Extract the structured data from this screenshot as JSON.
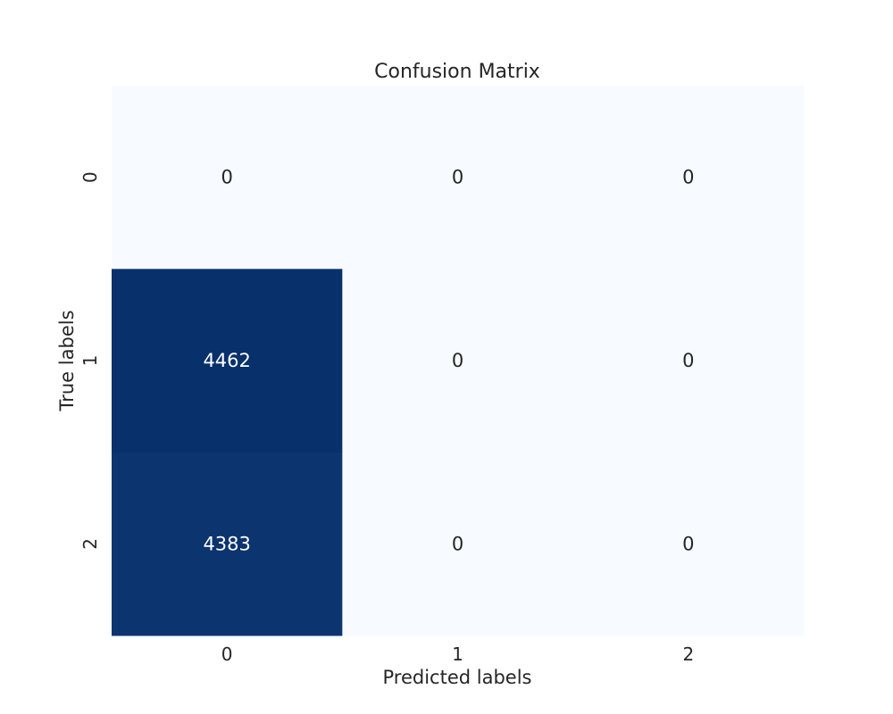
{
  "chart_data": {
    "type": "heatmap",
    "title": "Confusion Matrix",
    "xlabel": "Predicted labels",
    "ylabel": "True labels",
    "x_categories": [
      "0",
      "1",
      "2"
    ],
    "y_categories": [
      "0",
      "1",
      "2"
    ],
    "values": [
      [
        0,
        0,
        0
      ],
      [
        4462,
        0,
        0
      ],
      [
        4383,
        0,
        0
      ]
    ],
    "colormap": "Blues",
    "colorbar": false,
    "annotate": true,
    "grid": false,
    "colors": {
      "low": "#f7fbff",
      "high": "#08306b",
      "text_dark": "#262626",
      "text_light": "#ffffff"
    }
  }
}
